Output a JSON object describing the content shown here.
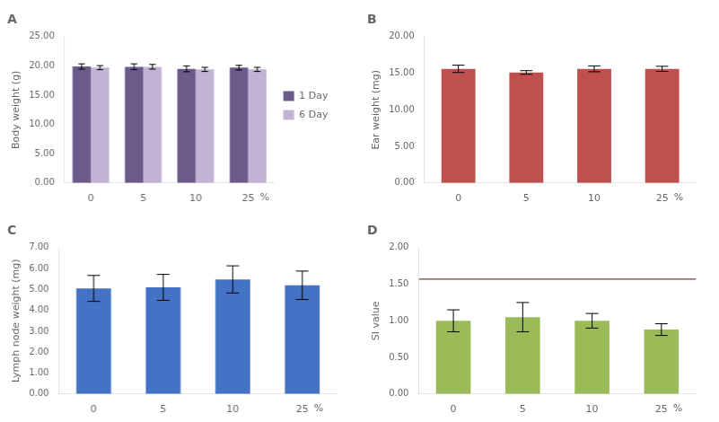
{
  "chart_data": [
    {
      "type": "bar",
      "title": "A",
      "y_label": "Body weight (g)",
      "categories": [
        "0",
        "5",
        "10",
        "25"
      ],
      "series": [
        {
          "name": "1 Day",
          "color": "#6b5b8b",
          "values": [
            19.9,
            19.85,
            19.5,
            19.7
          ],
          "errors": [
            0.45,
            0.5,
            0.5,
            0.4
          ]
        },
        {
          "name": "6 Day",
          "color": "#c1b3d3",
          "values": [
            19.7,
            19.85,
            19.4,
            19.4
          ],
          "errors": [
            0.35,
            0.4,
            0.35,
            0.35
          ]
        }
      ],
      "ylim": [
        0,
        25
      ],
      "yticks": [
        {
          "value": 0,
          "label": "0.00"
        },
        {
          "value": 5,
          "label": "5.00"
        },
        {
          "value": 10,
          "label": "10.00"
        },
        {
          "value": 15,
          "label": "15.00"
        },
        {
          "value": 20,
          "label": "20.00"
        },
        {
          "value": 25,
          "label": "25.00"
        }
      ],
      "grid": false,
      "legend": "right",
      "annotation": "%"
    },
    {
      "type": "bar",
      "title": "B",
      "y_label": "Ear weight (mg)",
      "categories": [
        "0",
        "5",
        "10",
        "25"
      ],
      "values": [
        15.6,
        15.1,
        15.6,
        15.6
      ],
      "errors": [
        0.5,
        0.25,
        0.4,
        0.35
      ],
      "color": "#be514e",
      "ylim": [
        0,
        20
      ],
      "yticks": [
        {
          "value": 0,
          "label": "0.00"
        },
        {
          "value": 5,
          "label": "5.00"
        },
        {
          "value": 10,
          "label": "10.00"
        },
        {
          "value": 15,
          "label": "15.00"
        },
        {
          "value": 20,
          "label": "20.00"
        }
      ],
      "grid": false,
      "annotation": "%"
    },
    {
      "type": "bar",
      "title": "C",
      "y_label": "Lymph node weight (mg)",
      "categories": [
        "0",
        "5",
        "10",
        "25"
      ],
      "values": [
        5.05,
        5.1,
        5.48,
        5.2
      ],
      "errors": [
        0.62,
        0.62,
        0.65,
        0.68
      ],
      "color": "#4472c4",
      "ylim": [
        0,
        7
      ],
      "yticks": [
        {
          "value": 0,
          "label": "0.00"
        },
        {
          "value": 1,
          "label": "1.00"
        },
        {
          "value": 2,
          "label": "2.00"
        },
        {
          "value": 3,
          "label": "3.00"
        },
        {
          "value": 4,
          "label": "4.00"
        },
        {
          "value": 5,
          "label": "5.00"
        },
        {
          "value": 6,
          "label": "6.00"
        },
        {
          "value": 7,
          "label": "7.00"
        }
      ],
      "grid": false,
      "annotation": "%"
    },
    {
      "type": "bar",
      "title": "D",
      "y_label": "SI value",
      "categories": [
        "0",
        "5",
        "10",
        "25"
      ],
      "values": [
        1.0,
        1.05,
        1.0,
        0.88
      ],
      "errors": [
        0.15,
        0.2,
        0.1,
        0.08
      ],
      "color": "#9bbb59",
      "reference_line": {
        "value": 1.57,
        "color": "#7b3b3b"
      },
      "ylim": [
        0,
        2.0
      ],
      "yticks": [
        {
          "value": 0,
          "label": "0.00"
        },
        {
          "value": 0.5,
          "label": "0.50"
        },
        {
          "value": 1.0,
          "label": "1.00"
        },
        {
          "value": 1.5,
          "label": "1.50"
        },
        {
          "value": 2.0,
          "label": "2.00"
        }
      ],
      "grid": false,
      "annotation": "%"
    }
  ]
}
